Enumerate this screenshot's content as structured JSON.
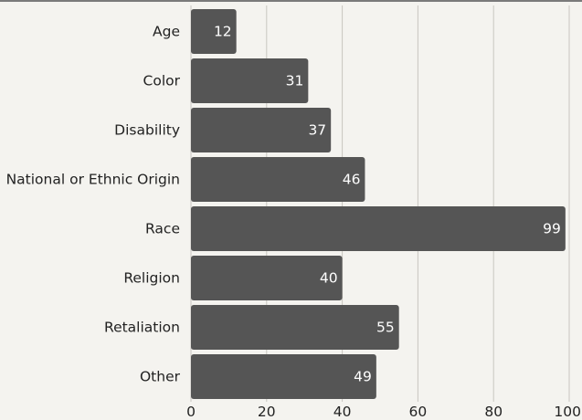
{
  "chart_data": {
    "type": "bar",
    "orientation": "horizontal",
    "categories": [
      "Age",
      "Color",
      "Disability",
      "National or Ethnic Origin",
      "Race",
      "Religion",
      "Retaliation",
      "Other"
    ],
    "values": [
      12,
      31,
      37,
      46,
      99,
      40,
      55,
      49
    ],
    "xlim": [
      0,
      100
    ],
    "xticks": [
      "0",
      "20",
      "40",
      "60",
      "80",
      "100"
    ],
    "title": "",
    "xlabel": "",
    "ylabel": "",
    "grid": "vertical",
    "bar_color": "#555555",
    "value_label_color": "#ffffff",
    "background": "#f4f3ef"
  }
}
